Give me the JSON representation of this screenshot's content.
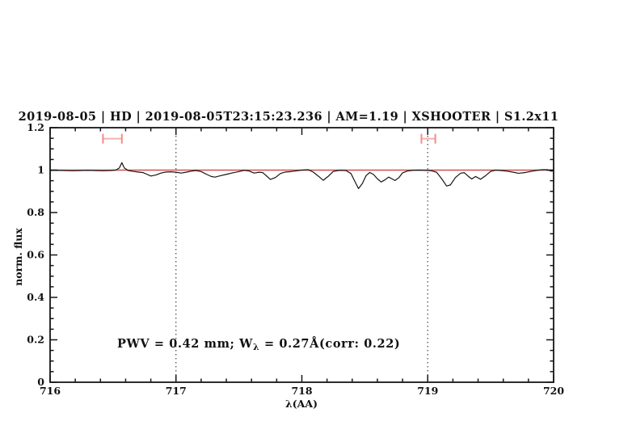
{
  "header": {
    "title": "2019-08-05 | HD | 2019-08-05T23:15:23.236 | AM=1.19 | XSHOOTER | S1.2x11",
    "title_color": "#2222dd"
  },
  "chart_data": {
    "type": "line",
    "title": "2019-08-05 | HD | 2019-08-05T23:15:23.236 | AM=1.19 | XSHOOTER | S1.2x11",
    "xlabel": "λ(AA)",
    "ylabel": "norm. flux",
    "xlim": [
      716,
      720
    ],
    "ylim": [
      0,
      1.2
    ],
    "grid": "off",
    "legend": "none",
    "x_major_ticks": [
      716,
      717,
      718,
      719,
      720
    ],
    "x_tick_labels": [
      "716",
      "717",
      "718",
      "719",
      "720"
    ],
    "x_minor_step": 0.2,
    "y_major_ticks": [
      0,
      0.2,
      0.4,
      0.6,
      0.8,
      1,
      1.2
    ],
    "y_tick_labels": [
      "0",
      "0.2",
      "0.4",
      "0.6",
      "0.8",
      "1",
      "1.2"
    ],
    "y_minor_step": 0.05,
    "dotted_vlines": [
      717,
      719
    ],
    "annotation": {
      "prefix": "PWV = 0.42 mm; W",
      "sub": "λ",
      "suffix": " = 0.27Å(corr: 0.22)",
      "color": "#2222dd"
    },
    "colors": {
      "spectrum": "#161616",
      "continuum": "#d05050",
      "marker_cap": "#f08c8c",
      "marker_bar": "#f5b0b0",
      "frame": "#161616",
      "dotted": "#444444"
    },
    "series": [
      {
        "name": "observed-spectrum",
        "points": [
          [
            716.0,
            0.998
          ],
          [
            716.06,
            0.999
          ],
          [
            716.12,
            0.998
          ],
          [
            716.18,
            0.997
          ],
          [
            716.24,
            0.998
          ],
          [
            716.3,
            0.999
          ],
          [
            716.36,
            0.998
          ],
          [
            716.42,
            0.997
          ],
          [
            716.48,
            0.998
          ],
          [
            716.52,
            1.0
          ],
          [
            716.55,
            1.01
          ],
          [
            716.57,
            1.035
          ],
          [
            716.59,
            1.01
          ],
          [
            716.62,
            0.998
          ],
          [
            716.66,
            0.994
          ],
          [
            716.7,
            0.991
          ],
          [
            716.74,
            0.988
          ],
          [
            716.77,
            0.98
          ],
          [
            716.8,
            0.972
          ],
          [
            716.84,
            0.977
          ],
          [
            716.88,
            0.986
          ],
          [
            716.92,
            0.991
          ],
          [
            716.96,
            0.992
          ],
          [
            717.0,
            0.99
          ],
          [
            717.04,
            0.986
          ],
          [
            717.08,
            0.99
          ],
          [
            717.12,
            0.995
          ],
          [
            717.16,
            0.998
          ],
          [
            717.2,
            0.993
          ],
          [
            717.24,
            0.981
          ],
          [
            717.28,
            0.97
          ],
          [
            717.31,
            0.967
          ],
          [
            717.35,
            0.973
          ],
          [
            717.4,
            0.98
          ],
          [
            717.45,
            0.987
          ],
          [
            717.5,
            0.993
          ],
          [
            717.54,
            0.999
          ],
          [
            717.58,
            0.996
          ],
          [
            717.62,
            0.986
          ],
          [
            717.66,
            0.99
          ],
          [
            717.69,
            0.988
          ],
          [
            717.72,
            0.972
          ],
          [
            717.75,
            0.956
          ],
          [
            717.79,
            0.965
          ],
          [
            717.83,
            0.984
          ],
          [
            717.87,
            0.991
          ],
          [
            717.91,
            0.993
          ],
          [
            717.95,
            0.996
          ],
          [
            718.0,
            1.0
          ],
          [
            718.05,
            1.002
          ],
          [
            718.09,
            0.991
          ],
          [
            718.13,
            0.972
          ],
          [
            718.17,
            0.952
          ],
          [
            718.21,
            0.971
          ],
          [
            718.25,
            0.994
          ],
          [
            718.3,
            0.999
          ],
          [
            718.35,
            0.998
          ],
          [
            718.39,
            0.984
          ],
          [
            718.42,
            0.948
          ],
          [
            718.45,
            0.913
          ],
          [
            718.48,
            0.936
          ],
          [
            718.51,
            0.974
          ],
          [
            718.54,
            0.989
          ],
          [
            718.57,
            0.979
          ],
          [
            718.6,
            0.959
          ],
          [
            718.63,
            0.944
          ],
          [
            718.66,
            0.954
          ],
          [
            718.69,
            0.967
          ],
          [
            718.71,
            0.961
          ],
          [
            718.74,
            0.951
          ],
          [
            718.77,
            0.964
          ],
          [
            718.8,
            0.987
          ],
          [
            718.84,
            0.996
          ],
          [
            718.88,
            0.999
          ],
          [
            718.93,
            1.0
          ],
          [
            718.98,
            0.999
          ],
          [
            719.03,
            0.997
          ],
          [
            719.07,
            0.99
          ],
          [
            719.11,
            0.96
          ],
          [
            719.15,
            0.925
          ],
          [
            719.18,
            0.93
          ],
          [
            719.22,
            0.965
          ],
          [
            719.26,
            0.985
          ],
          [
            719.29,
            0.988
          ],
          [
            719.32,
            0.972
          ],
          [
            719.35,
            0.958
          ],
          [
            719.38,
            0.97
          ],
          [
            719.42,
            0.957
          ],
          [
            719.46,
            0.974
          ],
          [
            719.5,
            0.994
          ],
          [
            719.54,
            1.0
          ],
          [
            719.58,
            0.998
          ],
          [
            719.63,
            0.995
          ],
          [
            719.68,
            0.99
          ],
          [
            719.72,
            0.985
          ],
          [
            719.77,
            0.988
          ],
          [
            719.82,
            0.994
          ],
          [
            719.87,
            0.999
          ],
          [
            719.91,
            1.002
          ],
          [
            719.95,
            1.002
          ],
          [
            719.98,
            0.995
          ],
          [
            720.0,
            0.996
          ]
        ]
      },
      {
        "name": "continuum-fit",
        "points": [
          [
            716.0,
            1.0
          ],
          [
            720.0,
            1.0
          ]
        ]
      }
    ],
    "range_markers": [
      {
        "x1": 716.42,
        "x2": 716.57,
        "y": 1.148,
        "cap": 0.023
      },
      {
        "x1": 718.95,
        "x2": 719.06,
        "y": 1.148,
        "cap": 0.023
      }
    ]
  }
}
